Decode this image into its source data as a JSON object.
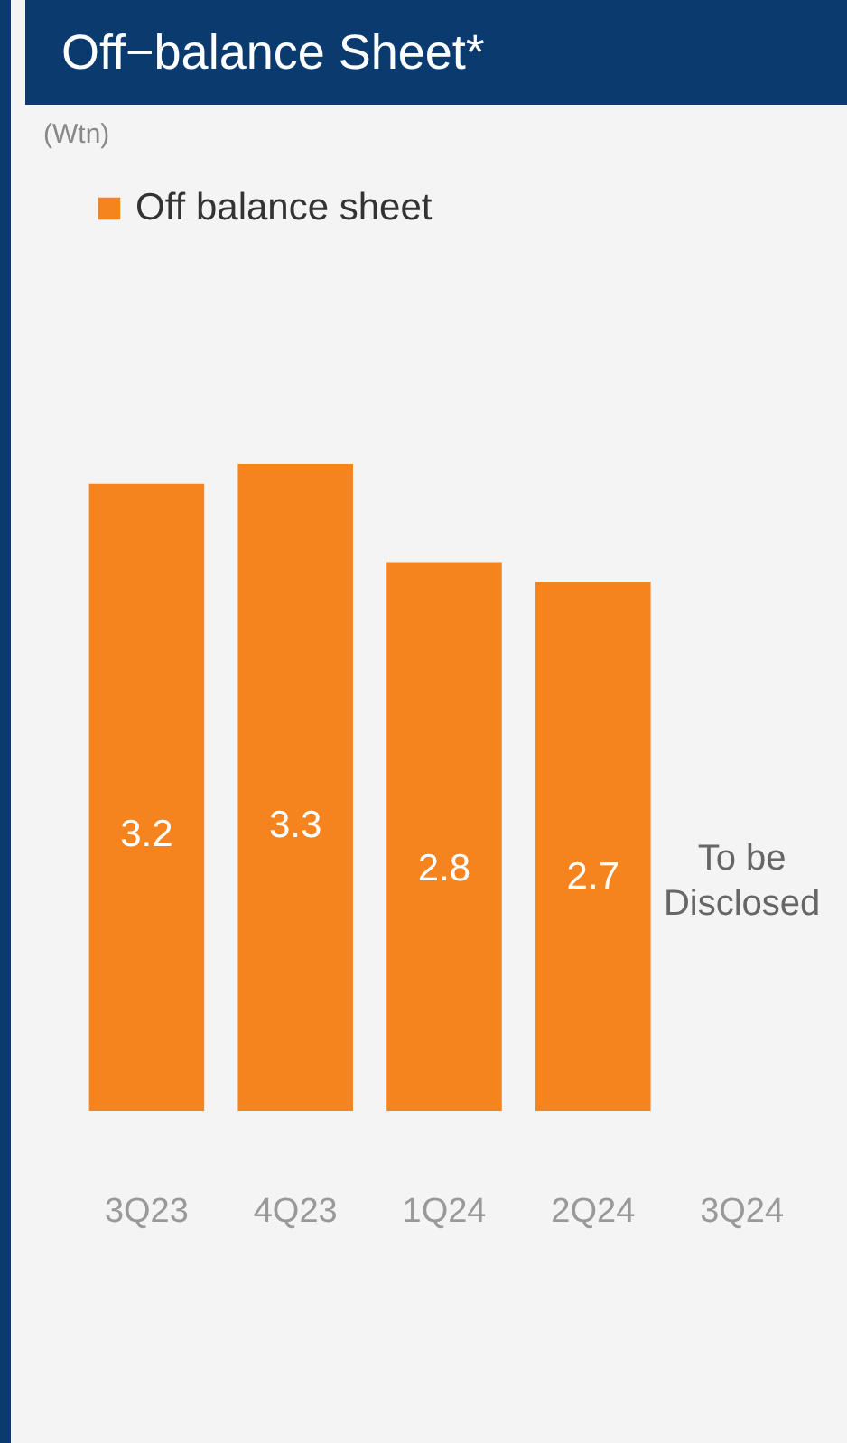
{
  "chart_data": {
    "type": "bar",
    "title": "Off−balance Sheet*",
    "categories": [
      "3Q23",
      "4Q23",
      "1Q24",
      "2Q24",
      "3Q24"
    ],
    "series": [
      {
        "name": "Off balance sheet",
        "color": "#f5841f",
        "values": [
          3.2,
          3.3,
          2.8,
          2.7,
          null
        ]
      }
    ],
    "data_labels": true,
    "legend": "top left",
    "annotations": [
      "(Wtn)",
      "To be Disclosed"
    ]
  }
}
